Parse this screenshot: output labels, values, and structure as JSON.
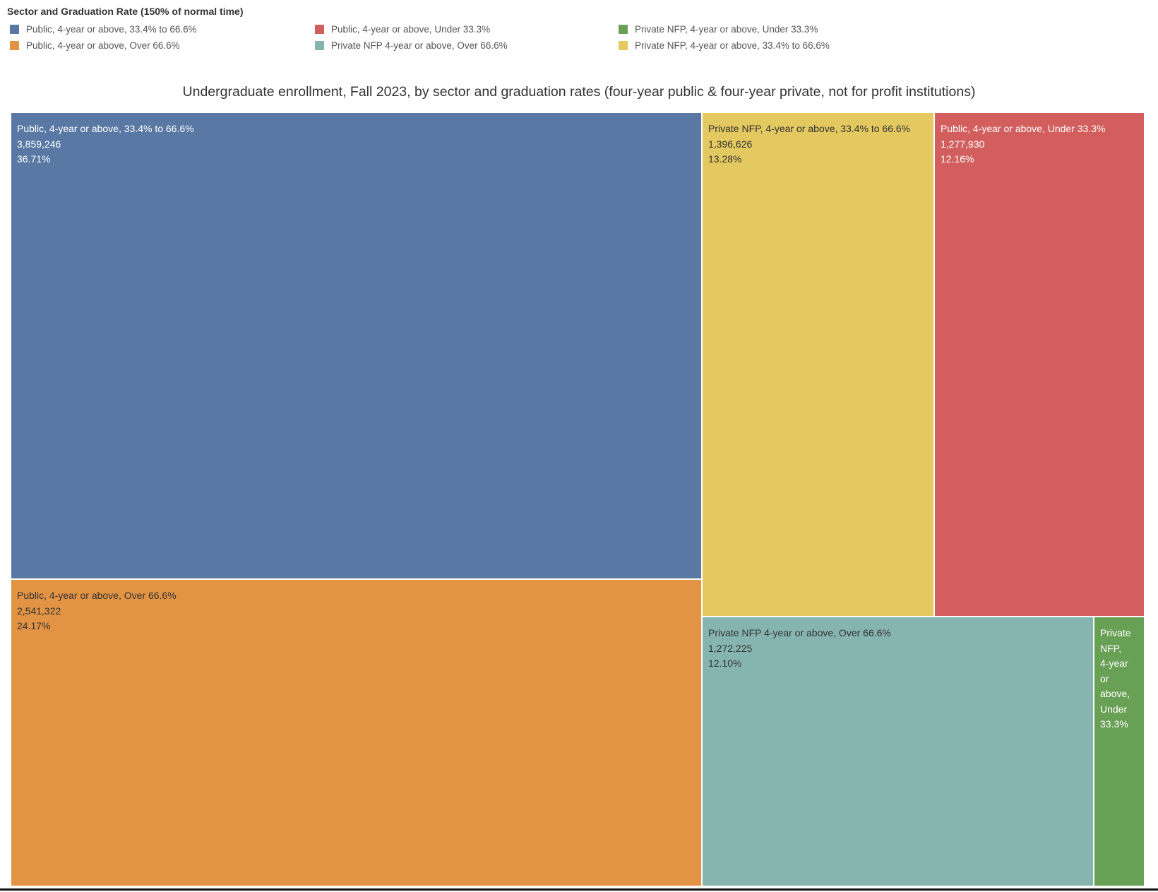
{
  "legend": {
    "title": "Sector and Graduation Rate (150% of normal time)",
    "items": [
      {
        "label": "Public, 4-year or above, 33.4% to 66.6%",
        "color": "#5979a4"
      },
      {
        "label": "Public, 4-year or above, Over 66.6%",
        "color": "#e29344"
      },
      {
        "label": "Public, 4-year or above, Under 33.3%",
        "color": "#d25f5d"
      },
      {
        "label": "Private NFP 4-year or above, Over 66.6%",
        "color": "#86b5b0"
      },
      {
        "label": "Private NFP, 4-year or above, Under 33.3%",
        "color": "#68a055"
      },
      {
        "label": "Private NFP, 4-year or above, 33.4% to 66.6%",
        "color": "#e4c961"
      }
    ]
  },
  "chart_data": {
    "type": "treemap",
    "title": "Undergraduate enrollment, Fall 2023, by sector and graduation rates (four-year public & four-year private, not for profit institutions)",
    "tiles": [
      {
        "label": "Public, 4-year or above, 33.4% to 66.6%",
        "value": 3859246,
        "value_text": "3,859,246",
        "percent": "36.71%",
        "color": "#5979a4",
        "text_color": "#ffffff"
      },
      {
        "label": "Public, 4-year or above, Over 66.6%",
        "value": 2541322,
        "value_text": "2,541,322",
        "percent": "24.17%",
        "color": "#e29344",
        "text_color": "#333333"
      },
      {
        "label": "Private NFP, 4-year or above, 33.4% to 66.6%",
        "value": 1396626,
        "value_text": "1,396,626",
        "percent": "13.28%",
        "color": "#e4c961",
        "text_color": "#333333"
      },
      {
        "label": "Public, 4-year or above, Under 33.3%",
        "value": 1277930,
        "value_text": "1,277,930",
        "percent": "12.16%",
        "color": "#d25f5d",
        "text_color": "#ffffff"
      },
      {
        "label": "Private NFP 4-year or above, Over 66.6%",
        "value": 1272225,
        "value_text": "1,272,225",
        "percent": "12.10%",
        "color": "#86b5b0",
        "text_color": "#333333"
      },
      {
        "label": "Private NFP,\n4-year\nor\nabove,\nUnder\n33.3%",
        "value": null,
        "value_text": "",
        "percent": "",
        "color": "#68a055",
        "text_color": "#ffffff"
      }
    ]
  }
}
